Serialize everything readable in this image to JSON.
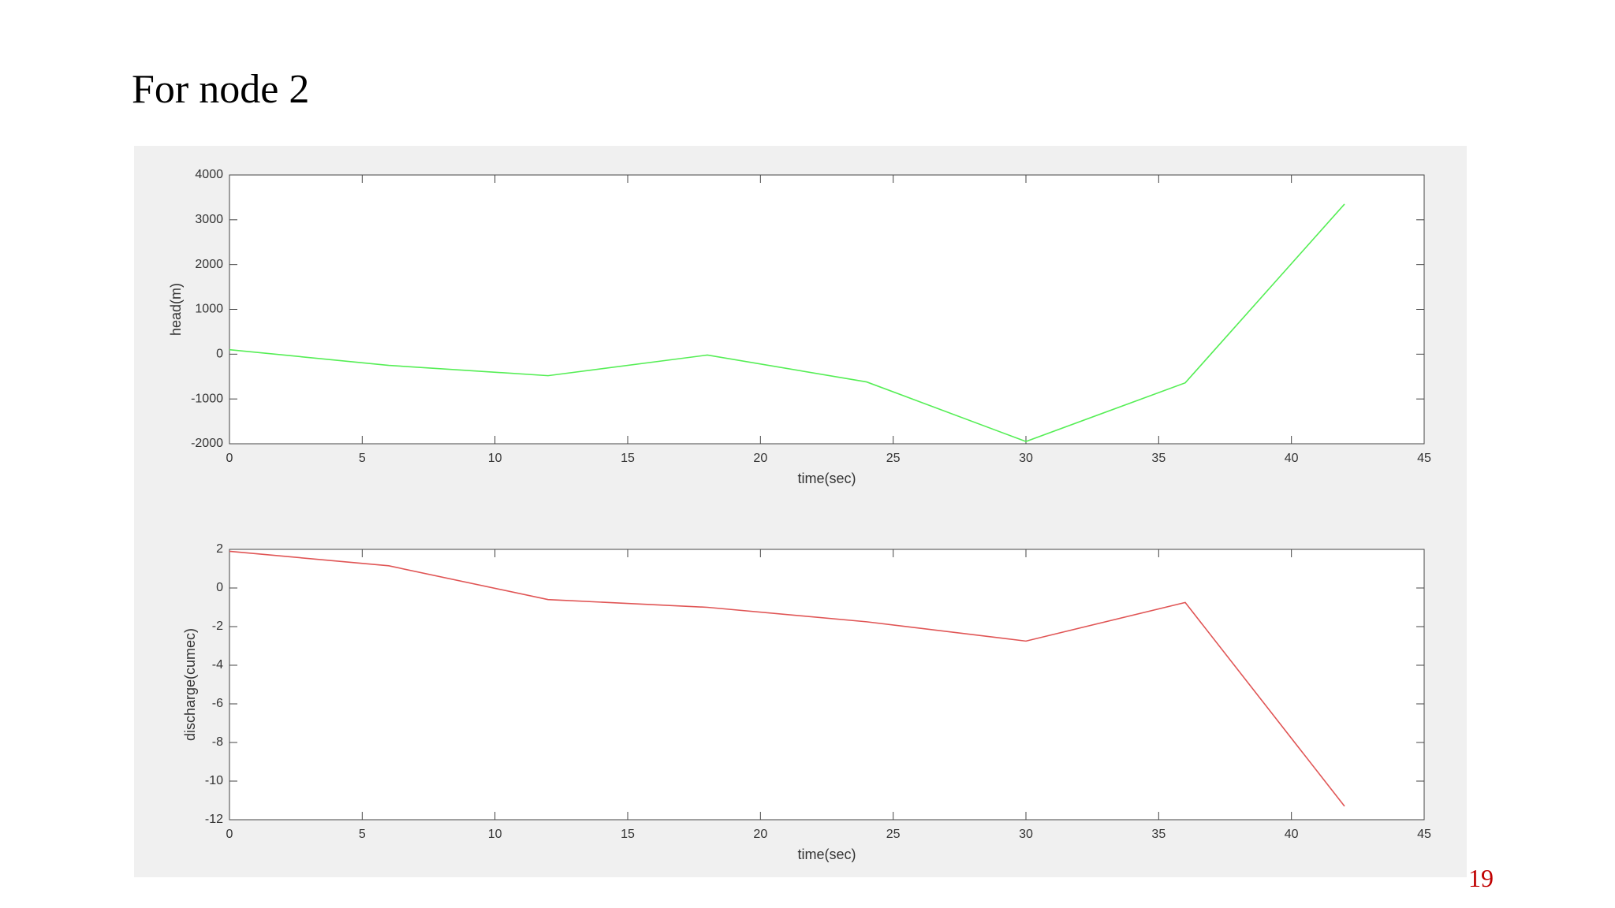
{
  "slide": {
    "title": "For node 2",
    "page_number": "19"
  },
  "chart_data": [
    {
      "type": "line",
      "xlabel": "time(sec)",
      "ylabel": "head(m)",
      "x": [
        0,
        6,
        12,
        18,
        24,
        30,
        36,
        42
      ],
      "series": [
        {
          "color": "#55ee55",
          "values": [
            100,
            -250,
            -480,
            -20,
            -620,
            -1950,
            -640,
            3350
          ]
        }
      ],
      "xlim": [
        0,
        45
      ],
      "xticks": [
        0,
        5,
        10,
        15,
        20,
        25,
        30,
        35,
        40,
        45
      ],
      "ylim": [
        -2000,
        4000
      ],
      "yticks": [
        -2000,
        -1000,
        0,
        1000,
        2000,
        3000,
        4000
      ]
    },
    {
      "type": "line",
      "xlabel": "time(sec)",
      "ylabel": "discharge(cumec)",
      "x": [
        0,
        6,
        12,
        18,
        24,
        30,
        36,
        42
      ],
      "series": [
        {
          "color": "#e05555",
          "values": [
            1.9,
            1.15,
            -0.6,
            -1.0,
            -1.75,
            -2.75,
            -0.75,
            -11.3
          ]
        }
      ],
      "xlim": [
        0,
        45
      ],
      "xticks": [
        0,
        5,
        10,
        15,
        20,
        25,
        30,
        35,
        40,
        45
      ],
      "ylim": [
        -12,
        2
      ],
      "yticks": [
        -12,
        -10,
        -8,
        -6,
        -4,
        -2,
        0,
        2
      ]
    }
  ]
}
